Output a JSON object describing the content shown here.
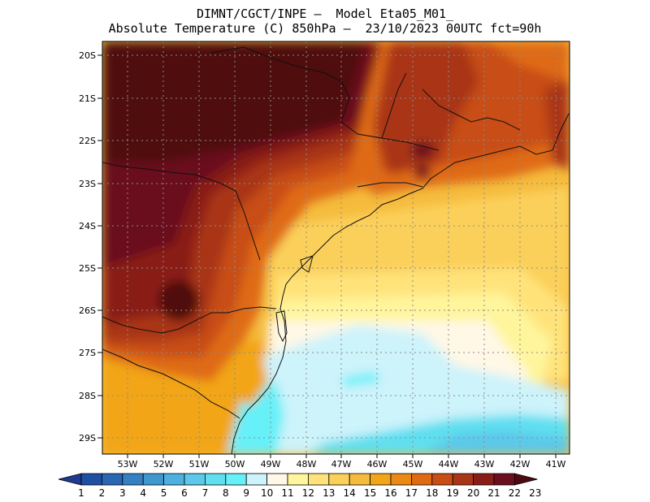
{
  "header": {
    "line1": "DIMNT/CGCT/INPE –  Model Eta05_M01_",
    "line2": "Absolute Temperature (C) 850hPa –  23/10/2023 00UTC fct=90h"
  },
  "map": {
    "lat_labels": [
      "20S",
      "21S",
      "22S",
      "23S",
      "24S",
      "25S",
      "26S",
      "27S",
      "28S",
      "29S"
    ],
    "lon_labels": [
      "53W",
      "52W",
      "51W",
      "50W",
      "49W",
      "48W",
      "47W",
      "46W",
      "45W",
      "44W",
      "43W",
      "42W",
      "41W"
    ]
  },
  "colorbar": {
    "labels": [
      "1",
      "2",
      "3",
      "4",
      "5",
      "6",
      "7",
      "8",
      "9",
      "10",
      "11",
      "12",
      "13",
      "14",
      "15",
      "16",
      "17",
      "18",
      "19",
      "20",
      "21",
      "22",
      "23"
    ],
    "colors": [
      "#1f3a8f",
      "#1f4fa0",
      "#2a66b3",
      "#3380c2",
      "#3f97cf",
      "#4eb0de",
      "#5cc8ea",
      "#5fdff0",
      "#66f0f8",
      "#cdf3fb",
      "#fff8e6",
      "#fff59c",
      "#ffe37a",
      "#fbd05a",
      "#f5bb3d",
      "#f2a519",
      "#eb8a12",
      "#df6a12",
      "#c84e14",
      "#a93516",
      "#8a1d18",
      "#6b0f1f",
      "#4f0a10"
    ]
  }
}
